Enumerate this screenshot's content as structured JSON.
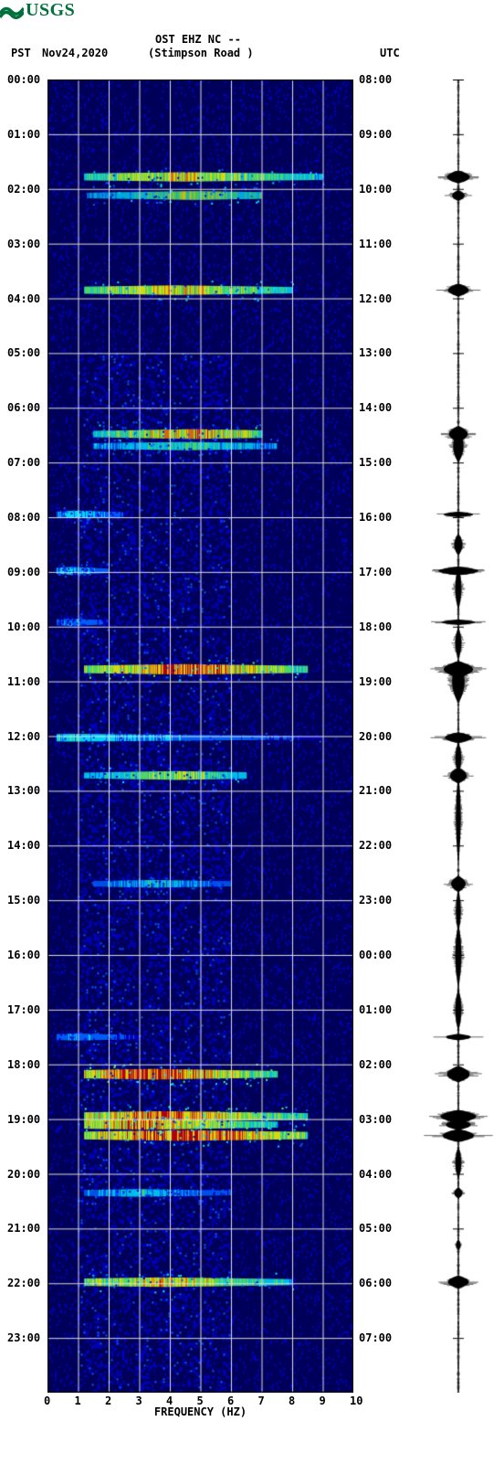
{
  "colors": {
    "usgs_green": "#00703c",
    "text": "#000000",
    "spectro_low": "#00005a",
    "spectro_mid1": "#0000c0",
    "spectro_mid2": "#0060ff",
    "spectro_mid3": "#00e0ff",
    "spectro_high1": "#60ff60",
    "spectro_high2": "#ffff00",
    "spectro_high3": "#ff8000",
    "spectro_high4": "#d00000",
    "grid": "#dcdcdc",
    "trace": "#000000",
    "bg": "#ffffff"
  },
  "header": {
    "logo_text": "USGS",
    "title": "OST EHZ NC --",
    "subtitle": "(Stimpson Road )",
    "tz_left": "PST",
    "tz_right": "UTC",
    "date": "Nov24,2020"
  },
  "typography": {
    "tick_fontsize": 12,
    "header_fontsize": 12,
    "logo_fontsize": 20
  },
  "spectrogram": {
    "type": "spectrogram",
    "freq_range_hz": [
      0,
      10
    ],
    "x_ticks": [
      0,
      1,
      2,
      3,
      4,
      5,
      6,
      7,
      8,
      9,
      10
    ],
    "x_label": "FREQUENCY (HZ)",
    "time_hours": 24,
    "left_hour_ticks": [
      "00:00",
      "01:00",
      "02:00",
      "03:00",
      "04:00",
      "05:00",
      "06:00",
      "07:00",
      "08:00",
      "09:00",
      "10:00",
      "11:00",
      "12:00",
      "13:00",
      "14:00",
      "15:00",
      "16:00",
      "17:00",
      "18:00",
      "19:00",
      "20:00",
      "21:00",
      "22:00",
      "23:00"
    ],
    "right_hour_ticks": [
      "08:00",
      "09:00",
      "10:00",
      "11:00",
      "12:00",
      "13:00",
      "14:00",
      "15:00",
      "16:00",
      "17:00",
      "18:00",
      "19:00",
      "20:00",
      "21:00",
      "22:00",
      "23:00",
      "00:00",
      "01:00",
      "02:00",
      "03:00",
      "04:00",
      "05:00",
      "06:00",
      "07:00"
    ],
    "events": [
      {
        "time": 1.78,
        "freq_start": 1.2,
        "freq_end": 9.0,
        "intensity": 0.7,
        "peak_freq": 4.5
      },
      {
        "time": 2.12,
        "freq_start": 1.3,
        "freq_end": 7.0,
        "intensity": 0.6,
        "peak_freq": 4.8
      },
      {
        "time": 3.85,
        "freq_start": 1.2,
        "freq_end": 8.0,
        "intensity": 0.75,
        "peak_freq": 4.2
      },
      {
        "time": 6.48,
        "freq_start": 1.5,
        "freq_end": 7.0,
        "intensity": 0.8,
        "peak_freq": 4.8
      },
      {
        "time": 6.7,
        "freq_start": 1.5,
        "freq_end": 7.5,
        "intensity": 0.5,
        "peak_freq": 4.5
      },
      {
        "time": 7.95,
        "freq_start": 0.3,
        "freq_end": 2.5,
        "intensity": 0.4,
        "peak_freq": 1.0
      },
      {
        "time": 8.98,
        "freq_start": 0.3,
        "freq_end": 2.0,
        "intensity": 0.4,
        "peak_freq": 0.8
      },
      {
        "time": 9.92,
        "freq_start": 0.3,
        "freq_end": 2.0,
        "intensity": 0.3,
        "peak_freq": 0.8
      },
      {
        "time": 10.78,
        "freq_start": 1.2,
        "freq_end": 8.5,
        "intensity": 0.9,
        "peak_freq": 4.5
      },
      {
        "time": 12.03,
        "freq_start": 0.3,
        "freq_end": 9.0,
        "intensity": 0.4,
        "peak_freq": 1.0
      },
      {
        "time": 12.72,
        "freq_start": 1.2,
        "freq_end": 6.5,
        "intensity": 0.6,
        "peak_freq": 4.2
      },
      {
        "time": 14.7,
        "freq_start": 1.5,
        "freq_end": 6.0,
        "intensity": 0.4,
        "peak_freq": 3.5
      },
      {
        "time": 17.5,
        "freq_start": 0.3,
        "freq_end": 3.0,
        "intensity": 0.3,
        "peak_freq": 1.0
      },
      {
        "time": 18.18,
        "freq_start": 1.2,
        "freq_end": 7.5,
        "intensity": 0.95,
        "peak_freq": 3.5
      },
      {
        "time": 18.95,
        "freq_start": 1.2,
        "freq_end": 8.5,
        "intensity": 0.9,
        "peak_freq": 3.8
      },
      {
        "time": 19.1,
        "freq_start": 1.2,
        "freq_end": 7.5,
        "intensity": 0.85,
        "peak_freq": 3.2
      },
      {
        "time": 19.3,
        "freq_start": 1.2,
        "freq_end": 8.5,
        "intensity": 0.95,
        "peak_freq": 4.5
      },
      {
        "time": 20.35,
        "freq_start": 1.2,
        "freq_end": 6.0,
        "intensity": 0.4,
        "peak_freq": 3.0
      },
      {
        "time": 21.98,
        "freq_start": 1.2,
        "freq_end": 8.0,
        "intensity": 0.75,
        "peak_freq": 3.8
      }
    ],
    "ambient_bands": [
      {
        "time_start": 5.0,
        "time_end": 24.0,
        "freq_start": 1.0,
        "freq_end": 6.0,
        "intensity": 0.15
      }
    ]
  },
  "seismic_trace": {
    "type": "waveform",
    "baseline_x": 0.5,
    "max_amplitude": 1.0,
    "events": [
      {
        "time": 1.78,
        "amp": 0.55,
        "dur": 0.12
      },
      {
        "time": 2.12,
        "amp": 0.3,
        "dur": 0.1
      },
      {
        "time": 3.85,
        "amp": 0.5,
        "dur": 0.12
      },
      {
        "time": 6.48,
        "amp": 0.45,
        "dur": 0.15
      },
      {
        "time": 6.7,
        "amp": 0.25,
        "dur": 0.3
      },
      {
        "time": 7.95,
        "amp": 0.7,
        "dur": 0.05
      },
      {
        "time": 8.5,
        "amp": 0.2,
        "dur": 0.2
      },
      {
        "time": 8.98,
        "amp": 0.95,
        "dur": 0.08
      },
      {
        "time": 9.3,
        "amp": 0.15,
        "dur": 0.4
      },
      {
        "time": 9.92,
        "amp": 0.8,
        "dur": 0.05
      },
      {
        "time": 10.3,
        "amp": 0.15,
        "dur": 0.3
      },
      {
        "time": 10.78,
        "amp": 0.7,
        "dur": 0.15
      },
      {
        "time": 11.0,
        "amp": 0.3,
        "dur": 0.4
      },
      {
        "time": 12.03,
        "amp": 0.65,
        "dur": 0.1
      },
      {
        "time": 12.4,
        "amp": 0.15,
        "dur": 0.3
      },
      {
        "time": 12.72,
        "amp": 0.4,
        "dur": 0.15
      },
      {
        "time": 13.5,
        "amp": 0.12,
        "dur": 0.8
      },
      {
        "time": 14.7,
        "amp": 0.35,
        "dur": 0.15
      },
      {
        "time": 15.2,
        "amp": 0.12,
        "dur": 0.4
      },
      {
        "time": 16.0,
        "amp": 0.15,
        "dur": 0.6
      },
      {
        "time": 17.0,
        "amp": 0.15,
        "dur": 0.4
      },
      {
        "time": 17.5,
        "amp": 0.6,
        "dur": 0.06
      },
      {
        "time": 18.18,
        "amp": 0.55,
        "dur": 0.15
      },
      {
        "time": 18.95,
        "amp": 0.85,
        "dur": 0.12
      },
      {
        "time": 19.1,
        "amp": 0.6,
        "dur": 0.1
      },
      {
        "time": 19.3,
        "amp": 0.75,
        "dur": 0.12
      },
      {
        "time": 19.8,
        "amp": 0.15,
        "dur": 0.3
      },
      {
        "time": 20.35,
        "amp": 0.2,
        "dur": 0.1
      },
      {
        "time": 21.3,
        "amp": 0.12,
        "dur": 0.1
      },
      {
        "time": 21.98,
        "amp": 0.5,
        "dur": 0.12
      }
    ]
  }
}
